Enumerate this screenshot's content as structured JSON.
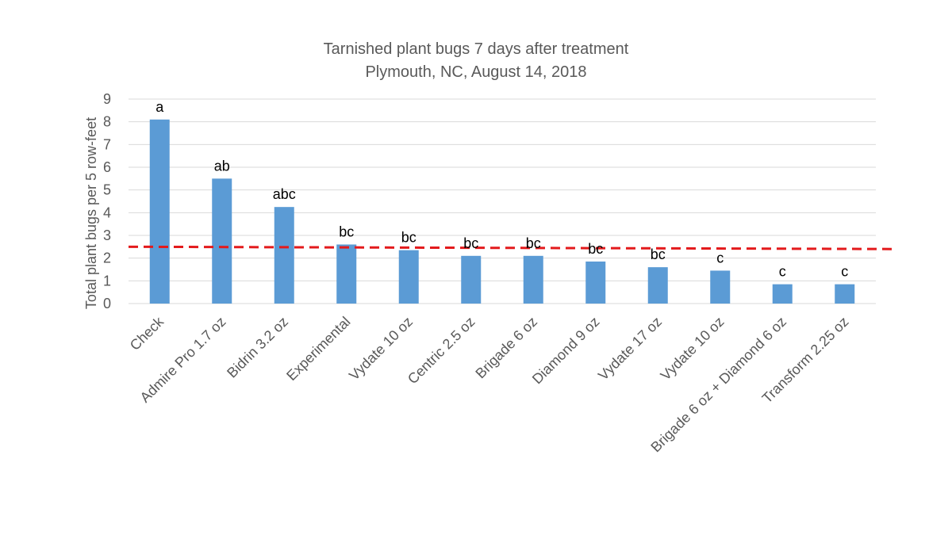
{
  "chart_data": {
    "type": "bar",
    "title": "Tarnished plant bugs 7 days after treatment",
    "subtitle": "Plymouth, NC, August 14, 2018",
    "xlabel": "",
    "ylabel": "Total plant bugs per 5 row-feet",
    "ylim": [
      0,
      9
    ],
    "yticks": [
      0,
      1,
      2,
      3,
      4,
      5,
      6,
      7,
      8,
      9
    ],
    "grid": true,
    "categories": [
      "Check",
      "Admire Pro 1.7 oz",
      "Bidrin 3.2 oz",
      "Experimental",
      "Vydate 10 oz",
      "Centric 2.5 oz",
      "Brigade 6 oz",
      "Diamond 9 oz",
      "Vydate 17 oz",
      "Vydate 10 oz",
      "Brigade 6 oz + Diamond 6 oz",
      "Transform 2.25 oz"
    ],
    "values": [
      8.1,
      5.5,
      4.25,
      2.6,
      2.35,
      2.1,
      2.1,
      1.85,
      1.6,
      1.45,
      0.85,
      0.85
    ],
    "data_labels": [
      "a",
      "ab",
      "abc",
      "bc",
      "bc",
      "bc",
      "bc",
      "bc",
      "bc",
      "c",
      "c",
      "c"
    ],
    "threshold": {
      "y_start": 2.5,
      "y_end": 2.4,
      "color": "#e31a1c",
      "style": "dashed"
    },
    "bar_color": "#5b9bd5"
  }
}
